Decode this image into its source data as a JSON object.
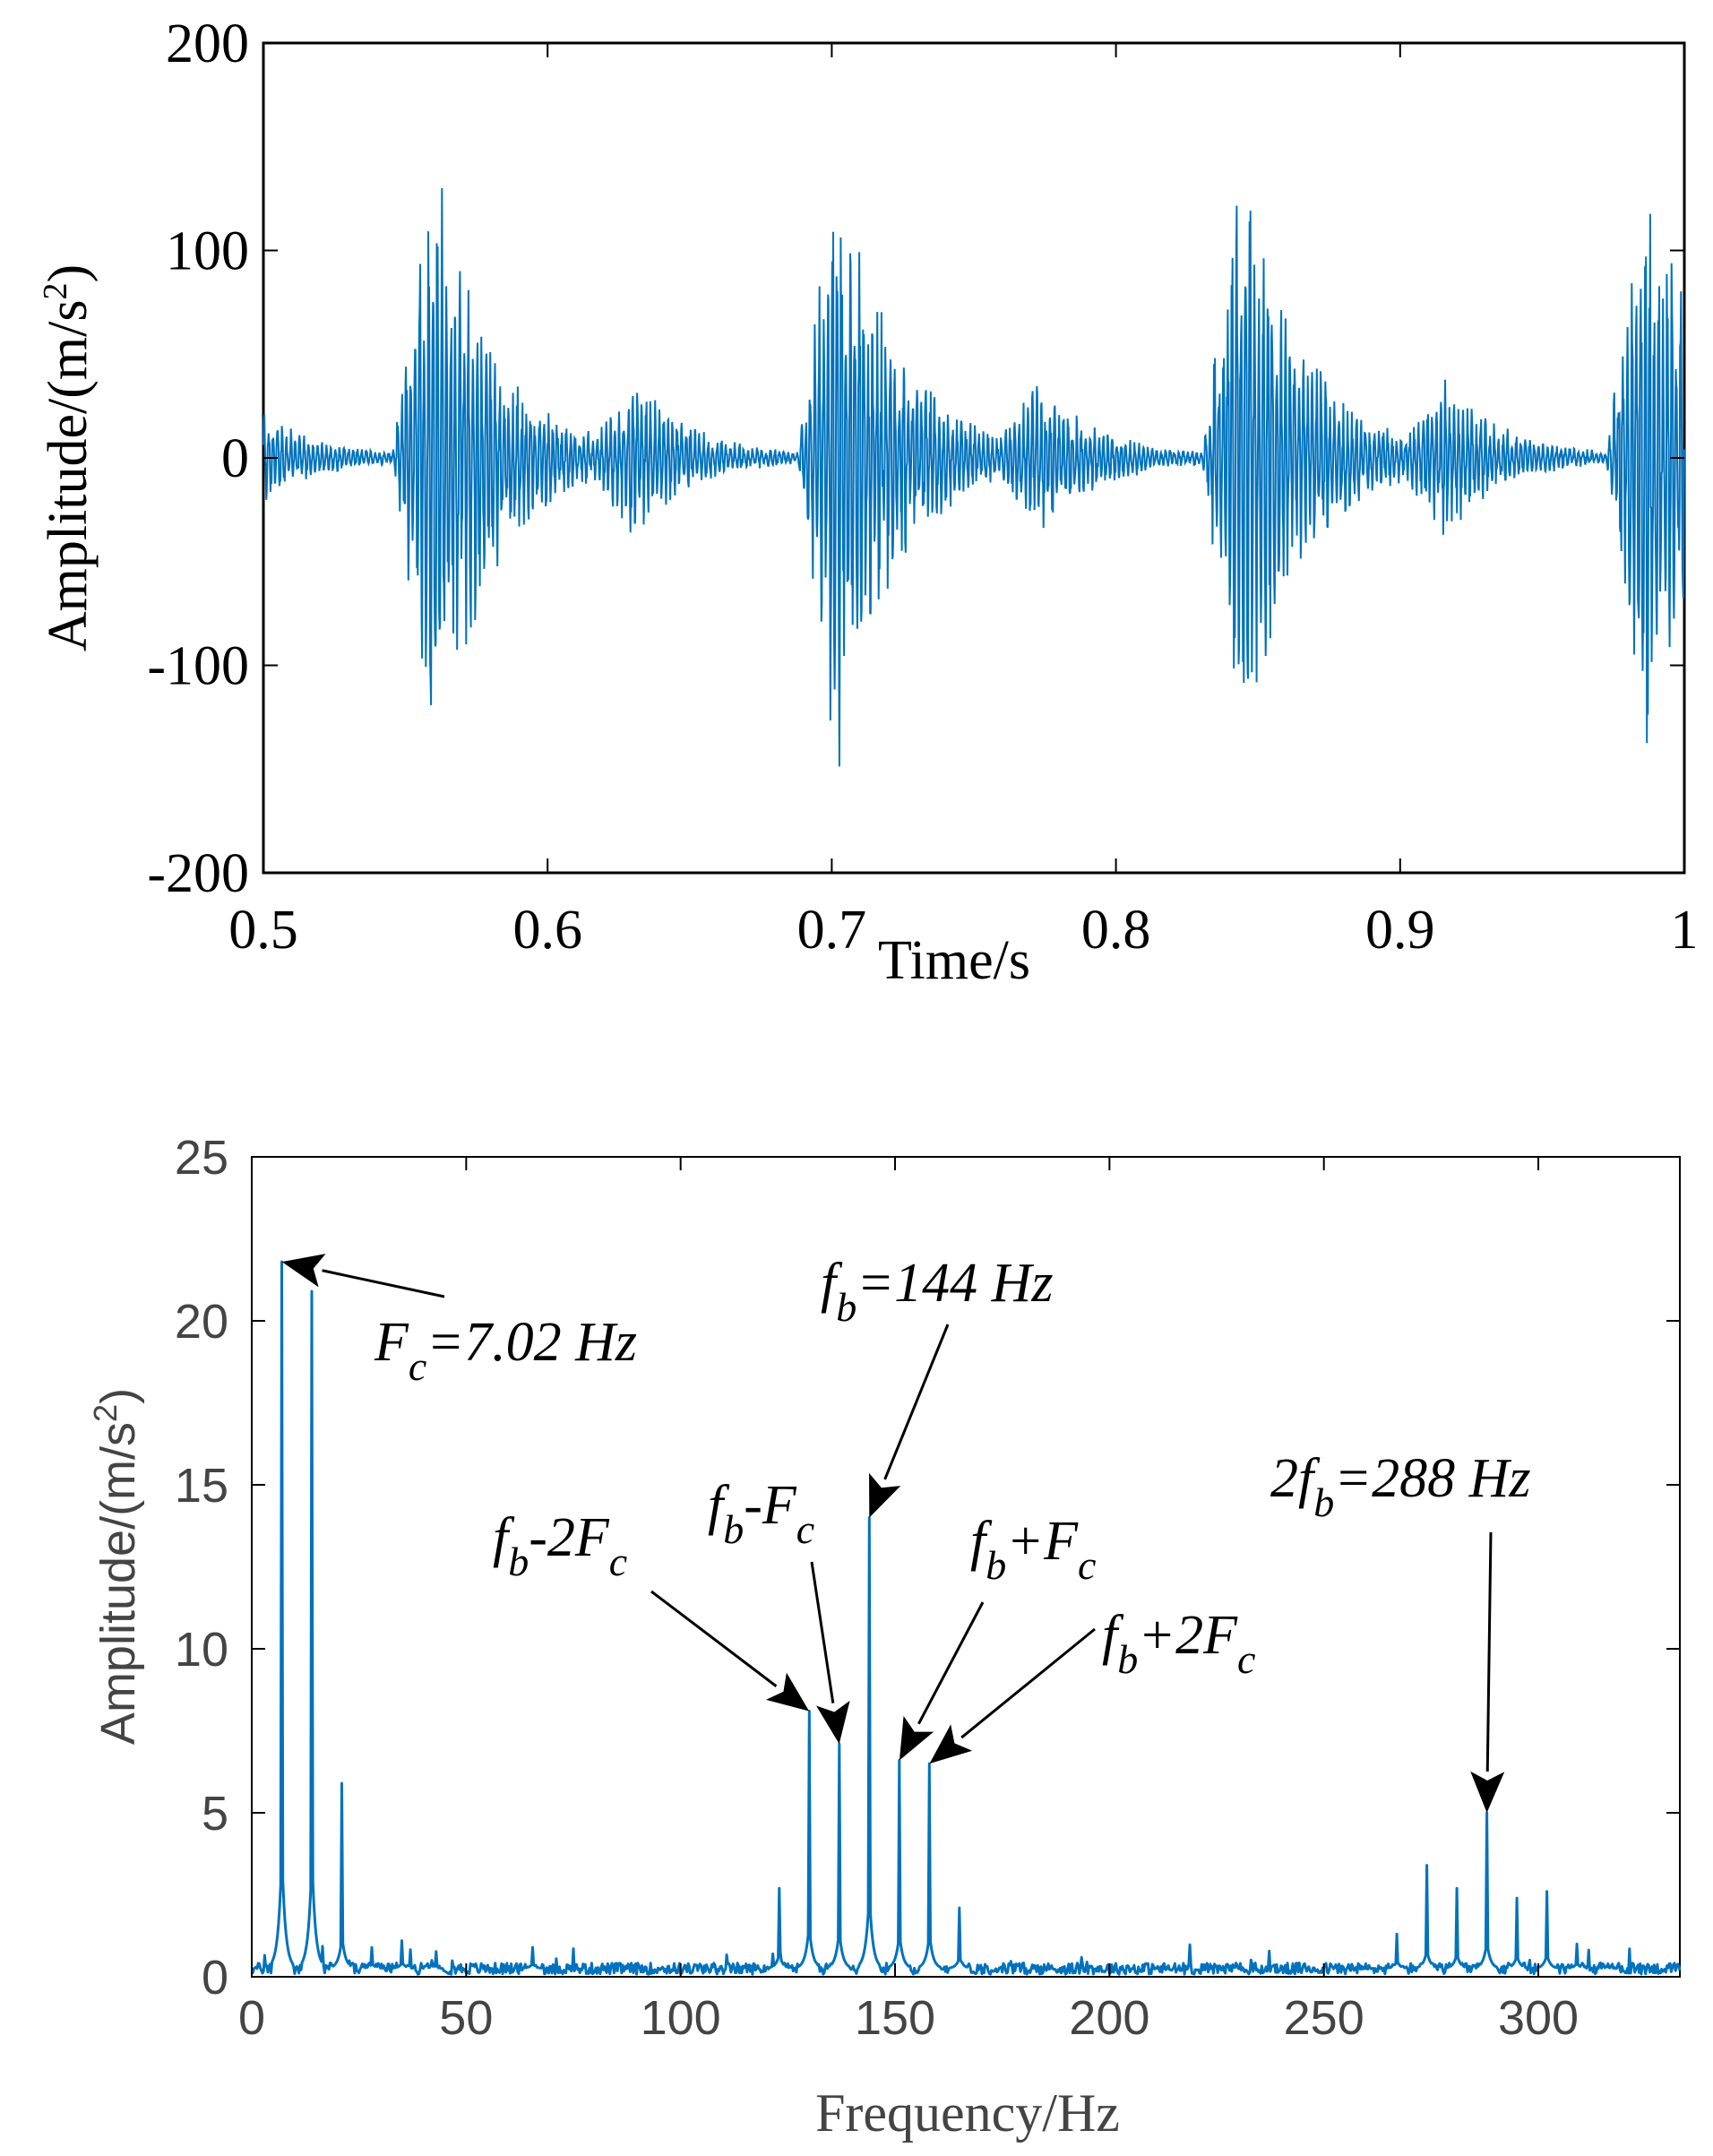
{
  "chart_data": [
    {
      "type": "line",
      "xlabel": "Time/s",
      "ylabel_base": "Amplitude/(m/s",
      "ylabel_sup": "2",
      "ylabel_end": ")",
      "xlim": [
        0.5,
        1.0
      ],
      "ylim": [
        -200,
        200
      ],
      "xticks": [
        0.5,
        0.6,
        0.7,
        0.8,
        0.9,
        1.0
      ],
      "xtick_labels": [
        "0.5",
        "0.6",
        "0.7",
        "0.8",
        "0.9",
        "1"
      ],
      "yticks": [
        -200,
        -100,
        0,
        100,
        200
      ],
      "ytick_labels": [
        "-200",
        "-100",
        "0",
        "100",
        "200"
      ],
      "grid": false,
      "color": "#0072BD",
      "signal": {
        "impact_period_s": 0.1424,
        "first_large_impact_s": 0.5475,
        "large_burst_peak": 140,
        "small_burst_peak": 30,
        "burst_decay_s": 0.022,
        "carrier_hz": 640
      }
    },
    {
      "type": "line",
      "xlabel": "Frequency/Hz",
      "ylabel_base": "Amplitude/(m/s",
      "ylabel_sup": "2",
      "ylabel_end": ")",
      "xlim": [
        0,
        333
      ],
      "ylim": [
        0,
        25
      ],
      "xticks": [
        0,
        50,
        100,
        150,
        200,
        250,
        300
      ],
      "xtick_labels": [
        "0",
        "50",
        "100",
        "150",
        "200",
        "250",
        "300"
      ],
      "yticks": [
        0,
        5,
        10,
        15,
        20,
        25
      ],
      "ytick_labels": [
        "0",
        "5",
        "10",
        "15",
        "20",
        "25"
      ],
      "grid": false,
      "color": "#0072BD",
      "noise_floor": 0.25,
      "peaks": [
        {
          "x": 7.02,
          "y": 21.8
        },
        {
          "x": 14.04,
          "y": 20.9
        },
        {
          "x": 21.06,
          "y": 5.9
        },
        {
          "x": 28.1,
          "y": 0.9
        },
        {
          "x": 35.1,
          "y": 1.1
        },
        {
          "x": 42.1,
          "y": 0.5
        },
        {
          "x": 65.5,
          "y": 0.9
        },
        {
          "x": 123.0,
          "y": 2.7
        },
        {
          "x": 129.96,
          "y": 8.1
        },
        {
          "x": 136.98,
          "y": 7.1
        },
        {
          "x": 144.0,
          "y": 14.0
        },
        {
          "x": 151.02,
          "y": 6.6
        },
        {
          "x": 158.04,
          "y": 6.5
        },
        {
          "x": 165.06,
          "y": 2.1
        },
        {
          "x": 267.0,
          "y": 1.3
        },
        {
          "x": 274.0,
          "y": 3.4
        },
        {
          "x": 281.0,
          "y": 2.7
        },
        {
          "x": 288.0,
          "y": 5.0
        },
        {
          "x": 295.0,
          "y": 2.4
        },
        {
          "x": 302.0,
          "y": 2.6
        },
        {
          "x": 309.0,
          "y": 1.0
        },
        {
          "x": 316.0,
          "y": 0.3
        }
      ],
      "annotations": [
        {
          "id": "fc",
          "parts": [
            [
              "F",
              ""
            ],
            [
              "c",
              "sub"
            ],
            [
              "=7.02 Hz",
              ""
            ]
          ],
          "target": [
            7.02,
            21.8
          ]
        },
        {
          "id": "fb",
          "parts": [
            [
              "f",
              ""
            ],
            [
              "b",
              "sub"
            ],
            [
              "=144 Hz",
              ""
            ]
          ],
          "target": [
            144.0,
            14.0
          ]
        },
        {
          "id": "fb-2fc",
          "parts": [
            [
              "f",
              ""
            ],
            [
              "b",
              "sub"
            ],
            [
              "-2F",
              ""
            ],
            [
              "c",
              "sub"
            ]
          ],
          "target": [
            129.96,
            8.1
          ]
        },
        {
          "id": "fb-fc",
          "parts": [
            [
              "f",
              ""
            ],
            [
              "b",
              "sub"
            ],
            [
              "-F",
              ""
            ],
            [
              "c",
              "sub"
            ]
          ],
          "target": [
            136.98,
            7.1
          ]
        },
        {
          "id": "fb+fc",
          "parts": [
            [
              "f",
              ""
            ],
            [
              "b",
              "sub"
            ],
            [
              "+F",
              ""
            ],
            [
              "c",
              "sub"
            ]
          ],
          "target": [
            151.02,
            6.6
          ]
        },
        {
          "id": "fb+2fc",
          "parts": [
            [
              "f",
              ""
            ],
            [
              "b",
              "sub"
            ],
            [
              "+2F",
              ""
            ],
            [
              "c",
              "sub"
            ]
          ],
          "target": [
            158.04,
            6.5
          ]
        },
        {
          "id": "2fb",
          "parts": [
            [
              "2f",
              ""
            ],
            [
              "b",
              "sub"
            ],
            [
              "=288 Hz",
              ""
            ]
          ],
          "target": [
            288.0,
            5.0
          ]
        }
      ]
    }
  ]
}
